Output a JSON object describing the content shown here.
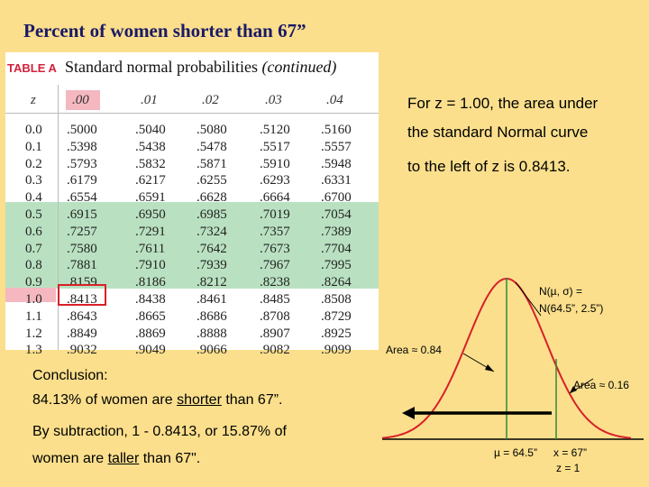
{
  "title": "Percent of women shorter than 67”",
  "table": {
    "badge": "TABLE A",
    "heading_main": "Standard normal probabilities ",
    "heading_cont": "(continued)",
    "columns": [
      "z",
      ".00",
      ".01",
      ".02",
      ".03",
      ".04"
    ],
    "rows": [
      [
        "0.0",
        ".5000",
        ".5040",
        ".5080",
        ".5120",
        ".5160"
      ],
      [
        "0.1",
        ".5398",
        ".5438",
        ".5478",
        ".5517",
        ".5557"
      ],
      [
        "0.2",
        ".5793",
        ".5832",
        ".5871",
        ".5910",
        ".5948"
      ],
      [
        "0.3",
        ".6179",
        ".6217",
        ".6255",
        ".6293",
        ".6331"
      ],
      [
        "0.4",
        ".6554",
        ".6591",
        ".6628",
        ".6664",
        ".6700"
      ],
      [
        "0.5",
        ".6915",
        ".6950",
        ".6985",
        ".7019",
        ".7054"
      ],
      [
        "0.6",
        ".7257",
        ".7291",
        ".7324",
        ".7357",
        ".7389"
      ],
      [
        "0.7",
        ".7580",
        ".7611",
        ".7642",
        ".7673",
        ".7704"
      ],
      [
        "0.8",
        ".7881",
        ".7910",
        ".7939",
        ".7967",
        ".7995"
      ],
      [
        "0.9",
        ".8159",
        ".8186",
        ".8212",
        ".8238",
        ".8264"
      ],
      [
        "1.0",
        ".8413",
        ".8438",
        ".8461",
        ".8485",
        ".8508"
      ],
      [
        "1.1",
        ".8643",
        ".8665",
        ".8686",
        ".8708",
        ".8729"
      ],
      [
        "1.2",
        ".8849",
        ".8869",
        ".8888",
        ".8907",
        ".8925"
      ],
      [
        "1.3",
        ".9032",
        ".9049",
        ".9066",
        ".9082",
        ".9099"
      ]
    ]
  },
  "explain": {
    "line1": "For z = 1.00, the area under",
    "line2": "the standard Normal curve",
    "line3": "to the left of z is 0.8413."
  },
  "curve": {
    "dist_line1": "N(µ, σ) =",
    "dist_line2": "N(64.5”, 2.5”)",
    "area_left": "Area ≈ 0.84",
    "area_right": "Area ≈ 0.16",
    "mu_label": "µ = 64.5”",
    "x_label": "x = 67”",
    "z_label": "z = 1"
  },
  "conclusion": {
    "heading": "Conclusion:",
    "line1_pre": "84.13% of women are ",
    "line1_u": "shorter",
    "line1_post": " than 67”.",
    "line2": "By subtraction, 1 - 0.8413, or 15.87% of",
    "line3_pre": "women are ",
    "line3_u": "taller",
    "line3_post": " than 67\"."
  },
  "colors": {
    "background": "#fbdf8c",
    "title": "#1a1a66",
    "highlight_red": "#d8202a",
    "green_band": "#7fc98e",
    "pink_highlight": "#f5b8c0"
  }
}
